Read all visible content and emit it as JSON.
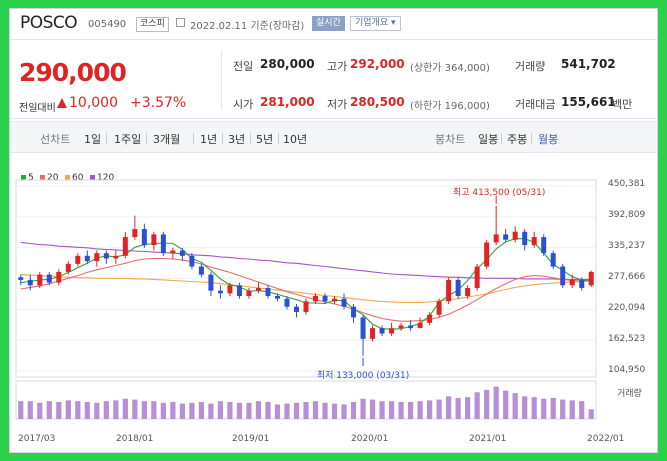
{
  "header": {
    "name": "POSCO",
    "code": "005490",
    "market": "코스피",
    "date": "2022.02.11 기준(장마감)",
    "realtime": "실시간",
    "company": "기업개요 ▾"
  },
  "quote": {
    "price": "290,000",
    "change_label": "전일대비",
    "change": "10,000",
    "change_pct": "+3.57%",
    "prev_close_label": "전일",
    "prev_close": "280,000",
    "open_label": "시가",
    "open": "281,000",
    "high_label": "고가",
    "high": "292,000",
    "high_sub": "(상한가 364,000)",
    "low_label": "저가",
    "low": "280,500",
    "low_sub": "(하한가 196,000)",
    "volume_label": "거래량",
    "volume": "541,702",
    "value_label": "거래대금",
    "value": "155,661",
    "value_unit": "백만"
  },
  "toolbar": {
    "line_chart": "선차트",
    "ranges": [
      "1일",
      "1주일",
      "3개월",
      "1년",
      "3년",
      "5년",
      "10년"
    ],
    "candle_chart": "봉차트",
    "periods": [
      "일봉",
      "주봉",
      "월봉"
    ],
    "active_period": "월봉"
  },
  "colors": {
    "up": "#e02424",
    "down": "#2b50d4",
    "ma5": "#2aa836",
    "ma20": "#ec6a6a",
    "ma60": "#f2a84a",
    "ma120": "#a356c8",
    "volume": "#b68fd6"
  },
  "chart_data": {
    "type": "candlestick",
    "legend": [
      {
        "name": "5",
        "color": "#2aa836"
      },
      {
        "name": "20",
        "color": "#ec6a6a"
      },
      {
        "name": "60",
        "color": "#f2a84a"
      },
      {
        "name": "120",
        "color": "#a356c8"
      }
    ],
    "yticks": [
      "450,381",
      "392,809",
      "335,237",
      "277,666",
      "220,094",
      "162,523",
      "104,950"
    ],
    "ylim": [
      104950,
      450381
    ],
    "xticks": [
      "2017/03",
      "2018/01",
      "2019/01",
      "2020/01",
      "2021/01",
      "2022/01"
    ],
    "volume_label": "거래량",
    "annotations": [
      {
        "label": "최고 413,500 (05/31)",
        "value": 413500,
        "index": 50
      },
      {
        "label": "최저 133,000 (03/31)",
        "value": 133000,
        "index": 36
      }
    ],
    "candles": [
      [
        280000,
        275000,
        285000,
        265000
      ],
      [
        275000,
        265000,
        285000,
        255000
      ],
      [
        265000,
        285000,
        290000,
        260000
      ],
      [
        285000,
        270000,
        290000,
        265000
      ],
      [
        270000,
        290000,
        295000,
        265000
      ],
      [
        290000,
        305000,
        310000,
        285000
      ],
      [
        305000,
        320000,
        325000,
        300000
      ],
      [
        320000,
        310000,
        330000,
        305000
      ],
      [
        310000,
        325000,
        330000,
        300000
      ],
      [
        325000,
        315000,
        330000,
        305000
      ],
      [
        315000,
        320000,
        330000,
        305000
      ],
      [
        320000,
        355000,
        365000,
        315000
      ],
      [
        355000,
        370000,
        395000,
        350000
      ],
      [
        370000,
        340000,
        380000,
        335000
      ],
      [
        340000,
        360000,
        365000,
        330000
      ],
      [
        360000,
        325000,
        365000,
        320000
      ],
      [
        325000,
        330000,
        335000,
        315000
      ],
      [
        330000,
        320000,
        335000,
        310000
      ],
      [
        320000,
        300000,
        325000,
        295000
      ],
      [
        300000,
        285000,
        305000,
        280000
      ],
      [
        285000,
        255000,
        290000,
        245000
      ],
      [
        255000,
        250000,
        265000,
        240000
      ],
      [
        250000,
        265000,
        270000,
        245000
      ],
      [
        265000,
        245000,
        270000,
        240000
      ],
      [
        245000,
        255000,
        260000,
        240000
      ],
      [
        255000,
        260000,
        270000,
        250000
      ],
      [
        260000,
        245000,
        265000,
        240000
      ],
      [
        245000,
        240000,
        250000,
        235000
      ],
      [
        240000,
        225000,
        245000,
        220000
      ],
      [
        225000,
        215000,
        230000,
        205000
      ],
      [
        215000,
        235000,
        240000,
        210000
      ],
      [
        235000,
        245000,
        250000,
        230000
      ],
      [
        245000,
        235000,
        250000,
        230000
      ],
      [
        235000,
        240000,
        245000,
        230000
      ],
      [
        240000,
        225000,
        250000,
        220000
      ],
      [
        225000,
        205000,
        230000,
        195000
      ],
      [
        205000,
        165000,
        210000,
        133000
      ],
      [
        165000,
        185000,
        190000,
        160000
      ],
      [
        185000,
        175000,
        190000,
        170000
      ],
      [
        175000,
        185000,
        195000,
        170000
      ],
      [
        185000,
        190000,
        195000,
        180000
      ],
      [
        190000,
        185000,
        200000,
        180000
      ],
      [
        185000,
        195000,
        205000,
        185000
      ],
      [
        195000,
        210000,
        215000,
        190000
      ],
      [
        210000,
        235000,
        240000,
        205000
      ],
      [
        235000,
        275000,
        280000,
        230000
      ],
      [
        275000,
        245000,
        280000,
        240000
      ],
      [
        245000,
        260000,
        265000,
        240000
      ],
      [
        260000,
        300000,
        305000,
        255000
      ],
      [
        300000,
        345000,
        350000,
        295000
      ],
      [
        345000,
        360000,
        413500,
        340000
      ],
      [
        360000,
        350000,
        370000,
        345000
      ],
      [
        350000,
        365000,
        375000,
        345000
      ],
      [
        365000,
        340000,
        370000,
        330000
      ],
      [
        340000,
        355000,
        365000,
        335000
      ],
      [
        355000,
        325000,
        360000,
        320000
      ],
      [
        325000,
        300000,
        330000,
        295000
      ],
      [
        300000,
        265000,
        305000,
        260000
      ],
      [
        265000,
        275000,
        285000,
        260000
      ],
      [
        275000,
        260000,
        280000,
        255000
      ],
      [
        265000,
        290000,
        292000,
        262000
      ]
    ],
    "ma": {
      "5": [
        270000,
        272000,
        275000,
        276000,
        281000,
        289000,
        298000,
        306000,
        316000,
        320000,
        318000,
        322000,
        336000,
        341000,
        343000,
        344000,
        343000,
        332000,
        315000,
        308000,
        293000,
        277000,
        266000,
        262000,
        254000,
        255000,
        253000,
        248000,
        243000,
        238000,
        232000,
        232000,
        231000,
        237000,
        236000,
        221000,
        210000,
        192000,
        184000,
        183000,
        184000,
        188000,
        194000,
        208000,
        233000,
        246000,
        256000,
        274000,
        296000,
        313000,
        333000,
        346000,
        352000,
        352000,
        345000,
        325000,
        304000,
        293000,
        281000,
        275000,
        272000
      ],
      "20": [
        258000,
        261000,
        264000,
        268000,
        273000,
        278000,
        283000,
        289000,
        294000,
        298000,
        302000,
        306000,
        311000,
        314000,
        315000,
        315000,
        314000,
        312000,
        309000,
        305000,
        299000,
        294000,
        289000,
        283000,
        277000,
        271000,
        265000,
        259000,
        253000,
        248000,
        243000,
        238000,
        234000,
        230000,
        226000,
        220000,
        214000,
        208000,
        203000,
        200000,
        198000,
        198000,
        199000,
        201000,
        205000,
        211000,
        219000,
        228000,
        238000,
        249000,
        259000,
        268000,
        276000,
        281000,
        283000,
        282000,
        279000,
        276000,
        274000,
        273000,
        274000
      ],
      "60": [
        285000,
        284000,
        283000,
        282000,
        281000,
        280000,
        279000,
        279000,
        278000,
        278000,
        278000,
        278000,
        277000,
        277000,
        276000,
        275000,
        274000,
        273000,
        272000,
        271000,
        270000,
        268000,
        266000,
        264000,
        262000,
        260000,
        258000,
        256000,
        254000,
        252000,
        250000,
        248000,
        246000,
        244000,
        242000,
        240000,
        238000,
        236000,
        235000,
        234000,
        233000,
        233000,
        233000,
        234000,
        236000,
        238000,
        240000,
        243000,
        246000,
        249000,
        253000,
        257000,
        261000,
        264000,
        266000,
        268000,
        269000,
        270000,
        271000,
        272000,
        273000
      ],
      "120": [
        345000,
        343000,
        341000,
        340000,
        338000,
        337000,
        336000,
        335000,
        333000,
        332000,
        331000,
        330000,
        329000,
        328000,
        327000,
        326000,
        325000,
        324000,
        322000,
        321000,
        320000,
        318000,
        317000,
        315000,
        314000,
        312000,
        311000,
        309000,
        307000,
        306000,
        304000,
        302000,
        300000,
        298000,
        296000,
        294000,
        292000,
        290000,
        288000,
        286000,
        285000,
        284000,
        283000,
        282000,
        281000,
        280000,
        280000,
        279000,
        279000,
        278000,
        278000,
        278000,
        278000,
        277000,
        277000,
        277000,
        277000,
        276000,
        276000,
        276000,
        276000
      ]
    },
    "volumes": [
      22,
      22,
      20,
      22,
      21,
      23,
      22,
      21,
      20,
      22,
      23,
      25,
      24,
      22,
      22,
      20,
      21,
      19,
      20,
      21,
      19,
      22,
      21,
      20,
      20,
      22,
      21,
      18,
      19,
      20,
      21,
      22,
      20,
      19,
      18,
      21,
      25,
      24,
      22,
      22,
      21,
      21,
      22,
      23,
      24,
      28,
      26,
      27,
      33,
      36,
      40,
      35,
      32,
      28,
      27,
      25,
      26,
      24,
      23,
      22,
      12
    ]
  }
}
